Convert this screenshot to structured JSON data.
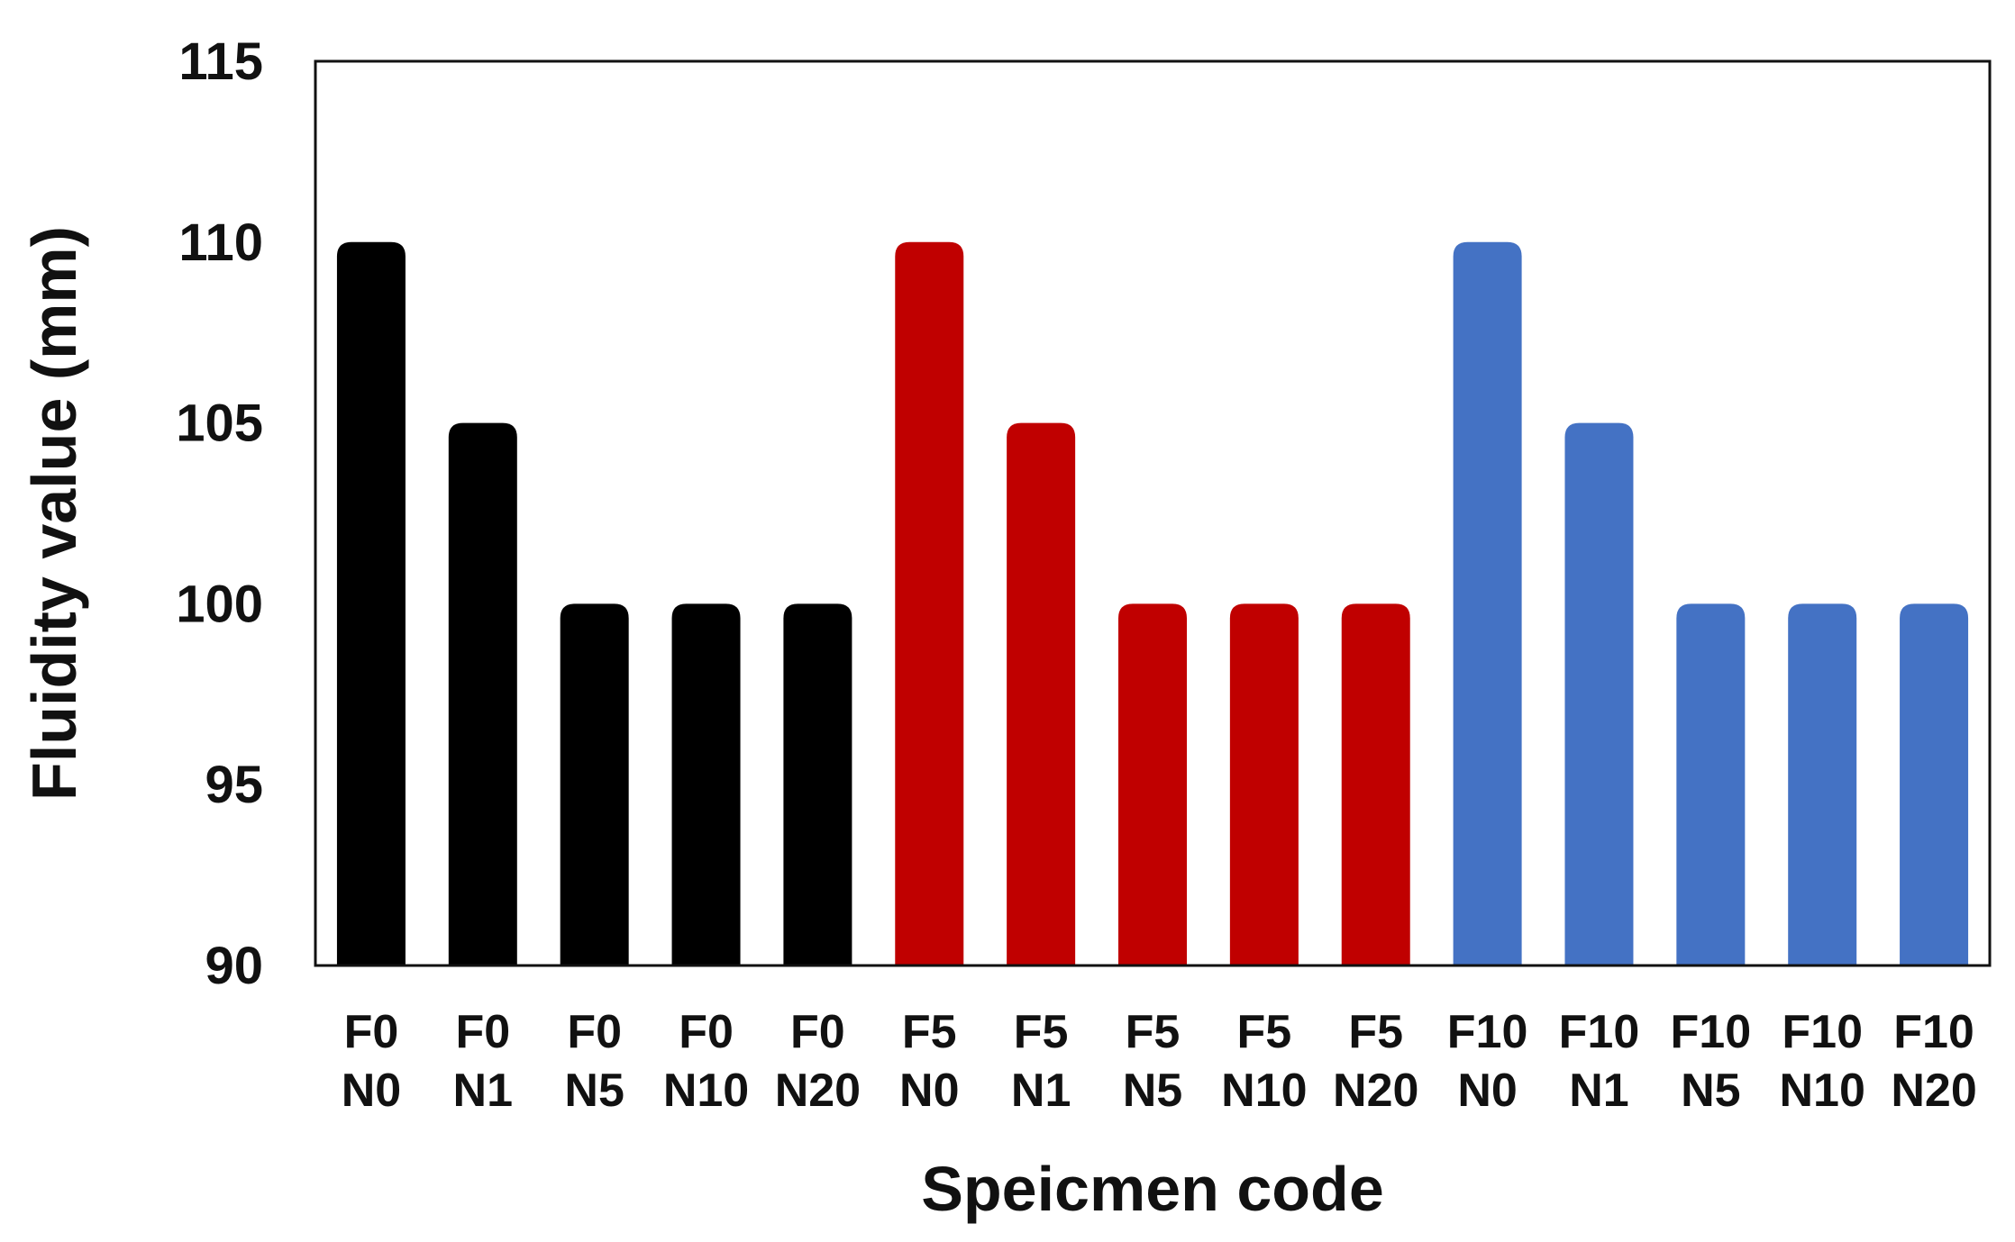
{
  "chart_data": {
    "type": "bar",
    "title": "",
    "xlabel": "Speicmen code",
    "ylabel": "Fluidity value (mm)",
    "ylim": [
      90,
      115
    ],
    "yticks": [
      "90",
      "95",
      "100",
      "105",
      "110",
      "115"
    ],
    "grid": false,
    "legend": "none",
    "categories": [
      [
        "F0",
        "N0"
      ],
      [
        "F0",
        "N1"
      ],
      [
        "F0",
        "N5"
      ],
      [
        "F0",
        "N10"
      ],
      [
        "F0",
        "N20"
      ],
      [
        "F5",
        "N0"
      ],
      [
        "F5",
        "N1"
      ],
      [
        "F5",
        "N5"
      ],
      [
        "F5",
        "N10"
      ],
      [
        "F5",
        "N20"
      ],
      [
        "F10",
        "N0"
      ],
      [
        "F10",
        "N1"
      ],
      [
        "F10",
        "N5"
      ],
      [
        "F10",
        "N10"
      ],
      [
        "F10",
        "N20"
      ]
    ],
    "values": [
      110,
      105,
      100,
      100,
      100,
      110,
      105,
      100,
      100,
      100,
      110,
      105,
      100,
      100,
      100
    ],
    "bar_colors": [
      "#000000",
      "#000000",
      "#000000",
      "#000000",
      "#000000",
      "#c00000",
      "#c00000",
      "#c00000",
      "#c00000",
      "#c00000",
      "#4472c4",
      "#4472c4",
      "#4472c4",
      "#4472c4",
      "#4472c4"
    ]
  }
}
